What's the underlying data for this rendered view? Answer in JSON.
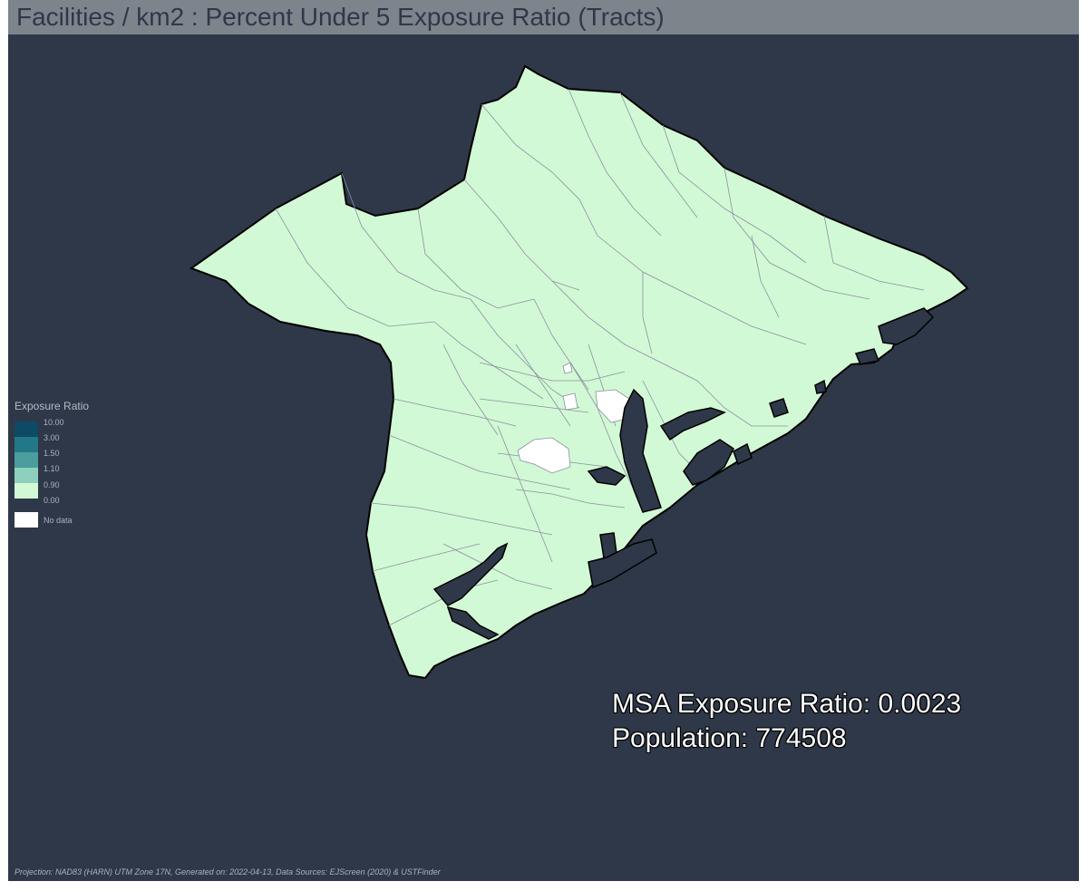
{
  "title": "Facilities / km2 : Percent Under 5 Exposure Ratio (Tracts)",
  "legend": {
    "title": "Exposure Ratio",
    "classes": [
      {
        "label": "10.00",
        "color": "#0d4a64"
      },
      {
        "label": "3.00",
        "color": "#237887"
      },
      {
        "label": "1.50",
        "color": "#4c9d9d"
      },
      {
        "label": "1.10",
        "color": "#8fcfbd"
      },
      {
        "label": "0.90",
        "color": "#d2f9d5"
      },
      {
        "label": "0.00",
        "color": null
      }
    ],
    "no_data": {
      "label": "No data",
      "color": "#ffffff"
    }
  },
  "map": {
    "region_fill": "#d2f9d5",
    "no_data_fill": "#ffffff",
    "water_fill": "#2e3848",
    "tract_line_color": "#8a90a0",
    "background": "#2e3848"
  },
  "stats": {
    "exposure_line": "MSA Exposure Ratio: 0.0023",
    "population_line": "Population: 774508"
  },
  "footer": "Projection: NAD83 (HARN) UTM Zone 17N, Generated on: 2022-04-13, Data Sources: EJScreen (2020) & USTFinder"
}
